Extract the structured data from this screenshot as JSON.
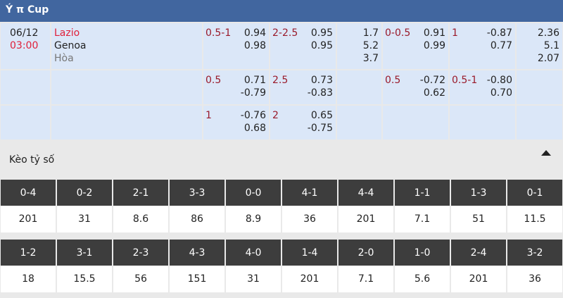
{
  "header": {
    "title": "Ý π Cup"
  },
  "match": {
    "date": "06/12",
    "time": "03:00",
    "home": "Lazio",
    "away": "Genoa",
    "draw": "Hòa"
  },
  "rows": [
    {
      "ah": {
        "line": "0.5-1",
        "home": "0.94",
        "away": "0.98"
      },
      "ou": {
        "line": "2-2.5",
        "over": "0.95",
        "under": "0.95"
      },
      "x12": [
        "1.7",
        "5.2",
        "3.7"
      ],
      "ah_half": {
        "line": "0-0.5",
        "home": "0.91",
        "away": "0.99"
      },
      "ou_half": {
        "line": "1",
        "over": "-0.87",
        "under": "0.77"
      },
      "x12_half": [
        "2.36",
        "5.1",
        "2.07"
      ]
    },
    {
      "ah": {
        "line": "0.5",
        "home": "0.71",
        "away": "-0.79"
      },
      "ou": {
        "line": "2.5",
        "over": "0.73",
        "under": "-0.83"
      },
      "ah_half": {
        "line": "0.5",
        "home": "-0.72",
        "away": "0.62"
      },
      "ou_half": {
        "line": "0.5-1",
        "over": "-0.80",
        "under": "0.70"
      }
    },
    {
      "ah": {
        "line": "1",
        "home": "-0.76",
        "away": "0.68"
      },
      "ou": {
        "line": "2",
        "over": "0.65",
        "under": "-0.75"
      }
    }
  ],
  "scores": {
    "title": "Kèo tỷ số",
    "items": [
      {
        "score": "0-4",
        "odds": "201"
      },
      {
        "score": "0-2",
        "odds": "31"
      },
      {
        "score": "2-1",
        "odds": "8.6"
      },
      {
        "score": "3-3",
        "odds": "86"
      },
      {
        "score": "0-0",
        "odds": "8.9"
      },
      {
        "score": "4-1",
        "odds": "36"
      },
      {
        "score": "4-4",
        "odds": "201"
      },
      {
        "score": "1-1",
        "odds": "7.1"
      },
      {
        "score": "1-3",
        "odds": "51"
      },
      {
        "score": "0-1",
        "odds": "11.5"
      },
      {
        "score": "1-2",
        "odds": "18"
      },
      {
        "score": "3-1",
        "odds": "15.5"
      },
      {
        "score": "2-3",
        "odds": "56"
      },
      {
        "score": "4-3",
        "odds": "151"
      },
      {
        "score": "4-0",
        "odds": "31"
      },
      {
        "score": "1-4",
        "odds": "201"
      },
      {
        "score": "2-0",
        "odds": "7.1"
      },
      {
        "score": "1-0",
        "odds": "5.6"
      },
      {
        "score": "2-4",
        "odds": "201"
      },
      {
        "score": "3-2",
        "odds": "36"
      }
    ]
  }
}
